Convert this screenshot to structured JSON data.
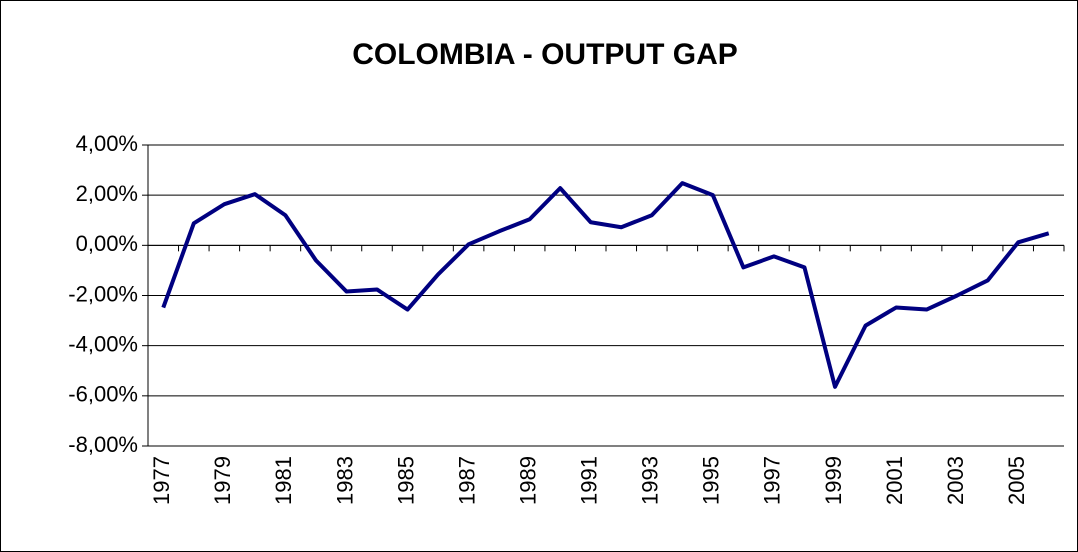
{
  "chart_data": {
    "type": "line",
    "title": "COLOMBIA - OUTPUT GAP",
    "categories": [
      "1977",
      null,
      "1979",
      null,
      "1981",
      null,
      "1983",
      null,
      "1985",
      null,
      "1987",
      null,
      "1989",
      null,
      "1991",
      null,
      "1993",
      null,
      "1995",
      null,
      "1997",
      null,
      "1999",
      null,
      "2001",
      null,
      "2003",
      null,
      "2005",
      null
    ],
    "series": [
      {
        "name": "Output gap",
        "color": "#000080",
        "values": [
          -2.48,
          0.88,
          1.64,
          2.04,
          1.2,
          -0.6,
          -1.84,
          -1.76,
          -2.56,
          -1.16,
          0.04,
          0.56,
          1.04,
          2.28,
          0.92,
          0.72,
          1.2,
          2.48,
          2.0,
          -0.88,
          -0.44,
          -0.88,
          -5.64,
          -3.2,
          -2.48,
          -2.56,
          -2.0,
          -1.4,
          0.12,
          0.48
        ]
      }
    ],
    "ylim": [
      -8,
      4
    ],
    "yticks": [
      {
        "value": -8,
        "label": "-8,00%"
      },
      {
        "value": -6,
        "label": "-6,00%"
      },
      {
        "value": -4,
        "label": "-4,00%"
      },
      {
        "value": -2,
        "label": "-2,00%"
      },
      {
        "value": 0,
        "label": "0,00%"
      },
      {
        "value": 2,
        "label": "2,00%"
      },
      {
        "value": 4,
        "label": "4,00%"
      }
    ],
    "grid": true
  }
}
